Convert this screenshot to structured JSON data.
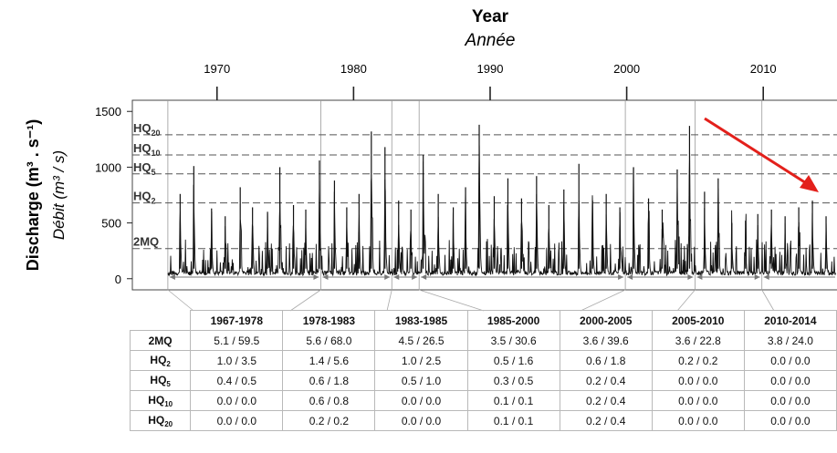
{
  "chart_data": {
    "type": "line",
    "title": "Year",
    "title_fr": "Année",
    "ylabel": "Discharge (m³ . s⁻¹)",
    "ylabel_fr": "Débit (m³ / s)",
    "top_ticks": [
      "1970",
      "1980",
      "1990",
      "2000",
      "2010"
    ],
    "y_ticks": [
      "0",
      "500",
      "1000",
      "1500"
    ],
    "ylim": [
      -100,
      1600
    ],
    "xlim": [
      1963.8,
      2015.4
    ],
    "thresholds": [
      {
        "label": "HQ",
        "sub": "20",
        "value": 1290
      },
      {
        "label": "HQ",
        "sub": "10",
        "value": 1110
      },
      {
        "label": "HQ",
        "sub": "5",
        "value": 940
      },
      {
        "label": "HQ",
        "sub": "2",
        "value": 680
      },
      {
        "label": "2MQ",
        "sub": "",
        "value": 270
      }
    ],
    "period_boundaries": [
      1966.4,
      1977.6,
      1982.8,
      1984.8,
      1999.9,
      2005.0,
      2009.9
    ],
    "peaks": [
      {
        "x": 1967.3,
        "y": 760
      },
      {
        "x": 1968.3,
        "y": 1010
      },
      {
        "x": 1969.6,
        "y": 630
      },
      {
        "x": 1970.6,
        "y": 560
      },
      {
        "x": 1971.7,
        "y": 820
      },
      {
        "x": 1972.6,
        "y": 640
      },
      {
        "x": 1973.7,
        "y": 600
      },
      {
        "x": 1974.6,
        "y": 1000
      },
      {
        "x": 1975.6,
        "y": 660
      },
      {
        "x": 1976.5,
        "y": 620
      },
      {
        "x": 1977.5,
        "y": 1060
      },
      {
        "x": 1978.6,
        "y": 880
      },
      {
        "x": 1979.5,
        "y": 640
      },
      {
        "x": 1980.4,
        "y": 760
      },
      {
        "x": 1981.3,
        "y": 1320
      },
      {
        "x": 1982.3,
        "y": 1180
      },
      {
        "x": 1983.3,
        "y": 700
      },
      {
        "x": 1984.2,
        "y": 620
      },
      {
        "x": 1985.1,
        "y": 1110
      },
      {
        "x": 1986.2,
        "y": 760
      },
      {
        "x": 1987.3,
        "y": 640
      },
      {
        "x": 1988.2,
        "y": 820
      },
      {
        "x": 1989.2,
        "y": 1380
      },
      {
        "x": 1990.3,
        "y": 740
      },
      {
        "x": 1991.3,
        "y": 900
      },
      {
        "x": 1992.3,
        "y": 720
      },
      {
        "x": 1993.4,
        "y": 920
      },
      {
        "x": 1994.3,
        "y": 660
      },
      {
        "x": 1995.4,
        "y": 800
      },
      {
        "x": 1996.5,
        "y": 1030
      },
      {
        "x": 1997.5,
        "y": 700
      },
      {
        "x": 1998.5,
        "y": 760
      },
      {
        "x": 1999.5,
        "y": 640
      },
      {
        "x": 2000.5,
        "y": 1000
      },
      {
        "x": 2001.6,
        "y": 720
      },
      {
        "x": 2002.6,
        "y": 620
      },
      {
        "x": 2003.7,
        "y": 980
      },
      {
        "x": 2004.6,
        "y": 1370
      },
      {
        "x": 2005.7,
        "y": 780
      },
      {
        "x": 2006.7,
        "y": 900
      },
      {
        "x": 2007.7,
        "y": 500
      },
      {
        "x": 2008.7,
        "y": 520
      },
      {
        "x": 2009.6,
        "y": 580
      },
      {
        "x": 2010.6,
        "y": 620
      },
      {
        "x": 2011.6,
        "y": 560
      },
      {
        "x": 2012.6,
        "y": 640
      },
      {
        "x": 2013.6,
        "y": 700
      },
      {
        "x": 2014.6,
        "y": 560
      }
    ],
    "baseline": 30
  },
  "table": {
    "periods": [
      "1967-1978",
      "1978-1983",
      "1983-1985",
      "1985-2000",
      "2000-2005",
      "2005-2010",
      "2010-2014"
    ],
    "rows": [
      {
        "label": "2MQ",
        "sub": "",
        "values": [
          "5.1 / 59.5",
          "5.6 / 68.0",
          "4.5 / 26.5",
          "3.5 / 30.6",
          "3.6 / 39.6",
          "3.6 / 22.8",
          "3.8 / 24.0"
        ]
      },
      {
        "label": "HQ",
        "sub": "2",
        "values": [
          "1.0 / 3.5",
          "1.4 / 5.6",
          "1.0 / 2.5",
          "0.5 / 1.6",
          "0.6 / 1.8",
          "0.2 / 0.2",
          "0.0 / 0.0"
        ]
      },
      {
        "label": "HQ",
        "sub": "5",
        "values": [
          "0.4 / 0.5",
          "0.6 / 1.8",
          "0.5 / 1.0",
          "0.3 / 0.5",
          "0.2 / 0.4",
          "0.0 / 0.0",
          "0.0 / 0.0"
        ]
      },
      {
        "label": "HQ",
        "sub": "10",
        "values": [
          "0.0 / 0.0",
          "0.6 / 0.8",
          "0.0 / 0.0",
          "0.1 / 0.1",
          "0.2 / 0.4",
          "0.0 / 0.0",
          "0.0 / 0.0"
        ]
      },
      {
        "label": "HQ",
        "sub": "20",
        "values": [
          "0.0 / 0.0",
          "0.2 / 0.2",
          "0.0 / 0.0",
          "0.1 / 0.1",
          "0.2 / 0.4",
          "0.0 / 0.0",
          "0.0 / 0.0"
        ]
      }
    ]
  },
  "colors": {
    "series": "#111111",
    "threshold": "#555555",
    "arrow": "#e3201b",
    "grid": "#9a9a9a"
  }
}
